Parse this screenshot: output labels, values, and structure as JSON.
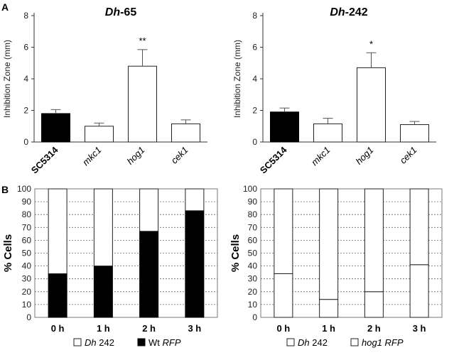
{
  "panel_labels": {
    "a": "A",
    "b": "B"
  },
  "chart_data": [
    {
      "type": "bar",
      "title": "Dh-65",
      "ylabel": "Inhibition Zone (mm)",
      "ylim": [
        0,
        8
      ],
      "yticks": [
        0,
        2,
        4,
        6,
        8
      ],
      "categories": [
        "SC5314",
        "mkc1",
        "hog1",
        "cek1"
      ],
      "values": [
        1.8,
        1.0,
        4.8,
        1.15
      ],
      "errors": [
        0.25,
        0.2,
        1.05,
        0.25
      ],
      "patterns": [
        "solid",
        "crosshatch",
        "diagonal",
        "white"
      ],
      "significance": [
        "",
        "",
        "**",
        ""
      ]
    },
    {
      "type": "bar",
      "title": "Dh-242",
      "ylabel": "Inhibition Zone (mm)",
      "ylim": [
        0,
        8
      ],
      "yticks": [
        0,
        2,
        4,
        6,
        8
      ],
      "categories": [
        "SC5314",
        "mkc1",
        "hog1",
        "cek1"
      ],
      "values": [
        1.9,
        1.15,
        4.7,
        1.1
      ],
      "errors": [
        0.25,
        0.35,
        0.95,
        0.2
      ],
      "patterns": [
        "solid",
        "crosshatch",
        "diagonal",
        "white"
      ],
      "significance": [
        "",
        "",
        "*",
        ""
      ]
    },
    {
      "type": "bar",
      "stacked": true,
      "ylabel": "% Cells",
      "ylim": [
        0,
        100
      ],
      "yticks": [
        0,
        10,
        20,
        30,
        40,
        50,
        60,
        70,
        80,
        90,
        100
      ],
      "categories": [
        "0 h",
        "1 h",
        "2 h",
        "3 h"
      ],
      "series": [
        {
          "name_a": "Wt",
          "name_b": "RFP",
          "pattern": "solid",
          "values": [
            34,
            40,
            67,
            83
          ]
        },
        {
          "name_a": "Dh",
          "name_b": "242",
          "pattern": "white",
          "values": [
            66,
            60,
            33,
            17
          ]
        }
      ]
    },
    {
      "type": "bar",
      "stacked": true,
      "ylabel": "% Cells",
      "ylim": [
        0,
        100
      ],
      "yticks": [
        0,
        10,
        20,
        30,
        40,
        50,
        60,
        70,
        80,
        90,
        100
      ],
      "categories": [
        "0 h",
        "1 h",
        "2 h",
        "3 h"
      ],
      "series": [
        {
          "name_a": "hog1",
          "name_b": "RFP",
          "pattern": "diagonal",
          "values": [
            34,
            14,
            20,
            41
          ]
        },
        {
          "name_a": "Dh",
          "name_b": "242",
          "pattern": "white",
          "values": [
            66,
            86,
            80,
            59
          ]
        }
      ]
    }
  ]
}
